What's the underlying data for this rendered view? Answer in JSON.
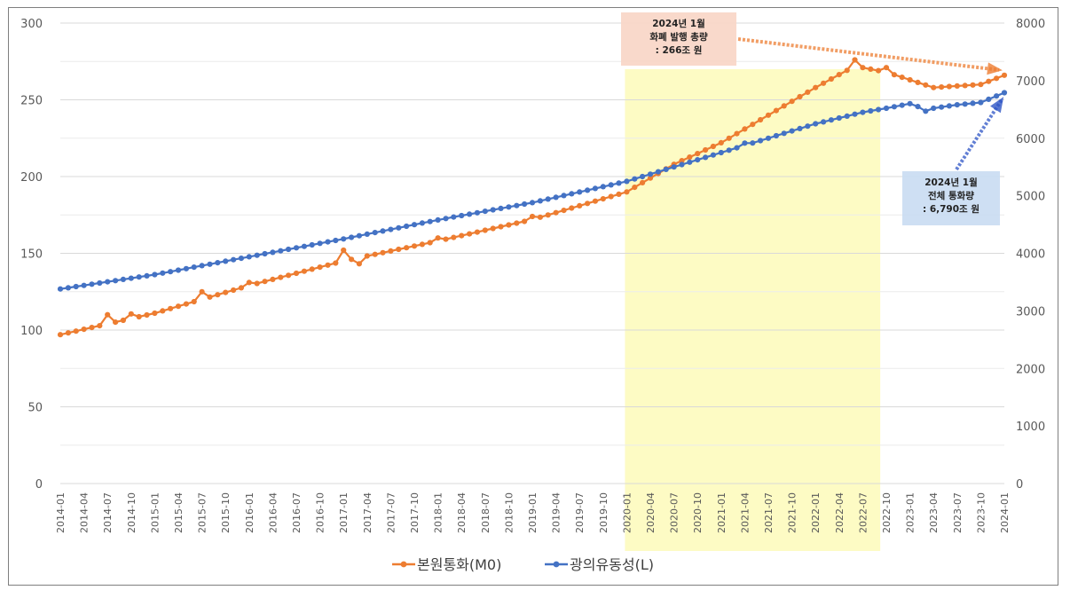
{
  "chart_data": {
    "type": "line",
    "title": "",
    "xlabel": "",
    "ylabel": "",
    "y_left_lim": [
      0,
      300
    ],
    "y_right_lim": [
      0,
      8000
    ],
    "y_left_ticks": [
      "0",
      "50",
      "100",
      "150",
      "200",
      "250",
      "300"
    ],
    "y_right_ticks": [
      "0",
      "1000",
      "2000",
      "3000",
      "4000",
      "5000",
      "6000",
      "7000",
      "8000"
    ],
    "x_start": "2014-01",
    "x_end": "2024-01",
    "x_tick_labels": [
      "2014-01",
      "2014-04",
      "2014-07",
      "2014-10",
      "2015-01",
      "2015-04",
      "2015-07",
      "2015-10",
      "2016-01",
      "2016-04",
      "2016-07",
      "2016-10",
      "2017-01",
      "2017-04",
      "2017-07",
      "2017-10",
      "2018-01",
      "2018-04",
      "2018-07",
      "2018-10",
      "2019-01",
      "2019-04",
      "2019-07",
      "2019-10",
      "2020-01",
      "2020-04",
      "2020-07",
      "2020-10",
      "2021-01",
      "2021-04",
      "2021-07",
      "2021-10",
      "2022-01",
      "2022-04",
      "2022-07",
      "2022-10",
      "2023-01",
      "2023-04",
      "2023-07",
      "2023-10",
      "2024-01"
    ],
    "grid": true,
    "legend_position": "bottom",
    "highlight_region": {
      "from": "2020-01",
      "to": "2022-09",
      "color": "#fdfbc4"
    },
    "series": [
      {
        "name": "본원통화(M0)",
        "axis": "left",
        "color": "#ed7d31",
        "anchors": [
          [
            "2014-01",
            97
          ],
          [
            "2015-01",
            111
          ],
          [
            "2016-01",
            129
          ],
          [
            "2017-01",
            145
          ],
          [
            "2018-01",
            158
          ],
          [
            "2019-01",
            172
          ],
          [
            "2020-01",
            190
          ],
          [
            "2020-07",
            208
          ],
          [
            "2021-01",
            222
          ],
          [
            "2021-07",
            240
          ],
          [
            "2022-01",
            258
          ],
          [
            "2022-06",
            272
          ],
          [
            "2022-10",
            268
          ],
          [
            "2023-04",
            258
          ],
          [
            "2023-10",
            260
          ],
          [
            "2024-01",
            266
          ]
        ],
        "spikes": [
          [
            "2014-07",
            6
          ],
          [
            "2014-10",
            3
          ],
          [
            "2015-07",
            5
          ],
          [
            "2016-01",
            2
          ],
          [
            "2017-01",
            7
          ],
          [
            "2017-03",
            -4
          ],
          [
            "2018-01",
            2
          ],
          [
            "2019-01",
            2
          ],
          [
            "2022-06",
            4
          ],
          [
            "2022-10",
            3
          ]
        ]
      },
      {
        "name": "광의유동성(L)",
        "axis": "right",
        "color": "#4472c4",
        "anchors": [
          [
            "2014-01",
            3380
          ],
          [
            "2015-01",
            3630
          ],
          [
            "2016-01",
            3940
          ],
          [
            "2017-01",
            4250
          ],
          [
            "2018-01",
            4580
          ],
          [
            "2019-01",
            4880
          ],
          [
            "2020-01",
            5250
          ],
          [
            "2020-07",
            5500
          ],
          [
            "2021-01",
            5750
          ],
          [
            "2021-07",
            6000
          ],
          [
            "2022-01",
            6250
          ],
          [
            "2022-07",
            6450
          ],
          [
            "2022-10",
            6520
          ],
          [
            "2023-01",
            6600
          ],
          [
            "2023-03",
            6500
          ],
          [
            "2023-07",
            6580
          ],
          [
            "2023-10",
            6620
          ],
          [
            "2024-01",
            6790
          ]
        ],
        "spikes": [
          [
            "2021-04",
            40
          ],
          [
            "2023-03",
            -30
          ]
        ]
      }
    ],
    "annotations": [
      {
        "lines": [
          "2024년 1월",
          "화폐 발행 총량",
          ": 266조 원"
        ],
        "box_color": "#f8d5c5",
        "arrow_color": "#ed7d31",
        "target": [
          "2024-01",
          266,
          "left"
        ]
      },
      {
        "lines": [
          "2024년 1월",
          "전체 통화량",
          ": 6,790조 원"
        ],
        "box_color": "#c9dcf2",
        "arrow_color": "#2e55c6",
        "target": [
          "2024-01",
          6790,
          "right"
        ]
      }
    ]
  }
}
